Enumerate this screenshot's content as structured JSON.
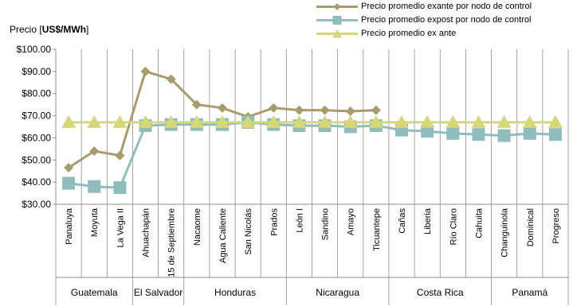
{
  "chart_data": {
    "type": "line",
    "ylabel_prefix": "Precio [",
    "ylabel_unit": "US$/MWh",
    "ylabel_suffix": "]",
    "ylim": [
      30,
      100
    ],
    "yticks": [
      30,
      40,
      50,
      60,
      70,
      80,
      90,
      100
    ],
    "ytick_labels": [
      "$30.00",
      "$40.00",
      "$50.00",
      "$60.00",
      "$70.00",
      "$80.00",
      "$90.00",
      "$100.00"
    ],
    "grid": "vertical",
    "legend_position": "top-right",
    "categories": [
      "Panaluya",
      "Moyuta",
      "La Vega II",
      "Ahuachapán",
      "15 de Septiembre",
      "Nacaome",
      "Agua Caliente",
      "San Nicolás",
      "Prados",
      "León I",
      "Sandino",
      "Amayo",
      "Ticuantepe",
      "Cañas",
      "Liberia",
      "Río Claro",
      "Cahuita",
      "Changuinola",
      "Dominical",
      "Progreso"
    ],
    "groups": [
      {
        "name": "Guatemala",
        "count": 3
      },
      {
        "name": "El Salvador",
        "count": 2
      },
      {
        "name": "Honduras",
        "count": 4
      },
      {
        "name": "Nicaragua",
        "count": 4
      },
      {
        "name": "Costa Rica",
        "count": 4
      },
      {
        "name": "Panamá",
        "count": 3
      }
    ],
    "series": [
      {
        "name": "Precio promedio exante por nodo de control",
        "color": "#a69c6e",
        "marker": "diamond",
        "values": [
          46.5,
          54,
          52,
          90,
          86.5,
          75,
          73.5,
          69.5,
          73.5,
          72.5,
          72.5,
          72,
          72.5,
          null,
          null,
          null,
          null,
          null,
          null,
          null
        ]
      },
      {
        "name": "Precio promedio expost por nodo de control",
        "color": "#8fbcbc",
        "marker": "square",
        "values": [
          39.5,
          38,
          37.5,
          65.5,
          66,
          66,
          66,
          67,
          66,
          65.5,
          65.5,
          65,
          65.5,
          63.5,
          63,
          62,
          61.5,
          61,
          62,
          61.5
        ]
      },
      {
        "name": "Precio promedio ex ante",
        "color": "#d6d67a",
        "marker": "triangle",
        "values": [
          67,
          67,
          67,
          67,
          67,
          67,
          67,
          67,
          67,
          67,
          67,
          67,
          67,
          67,
          67,
          67,
          67,
          67,
          67,
          67
        ]
      }
    ]
  }
}
